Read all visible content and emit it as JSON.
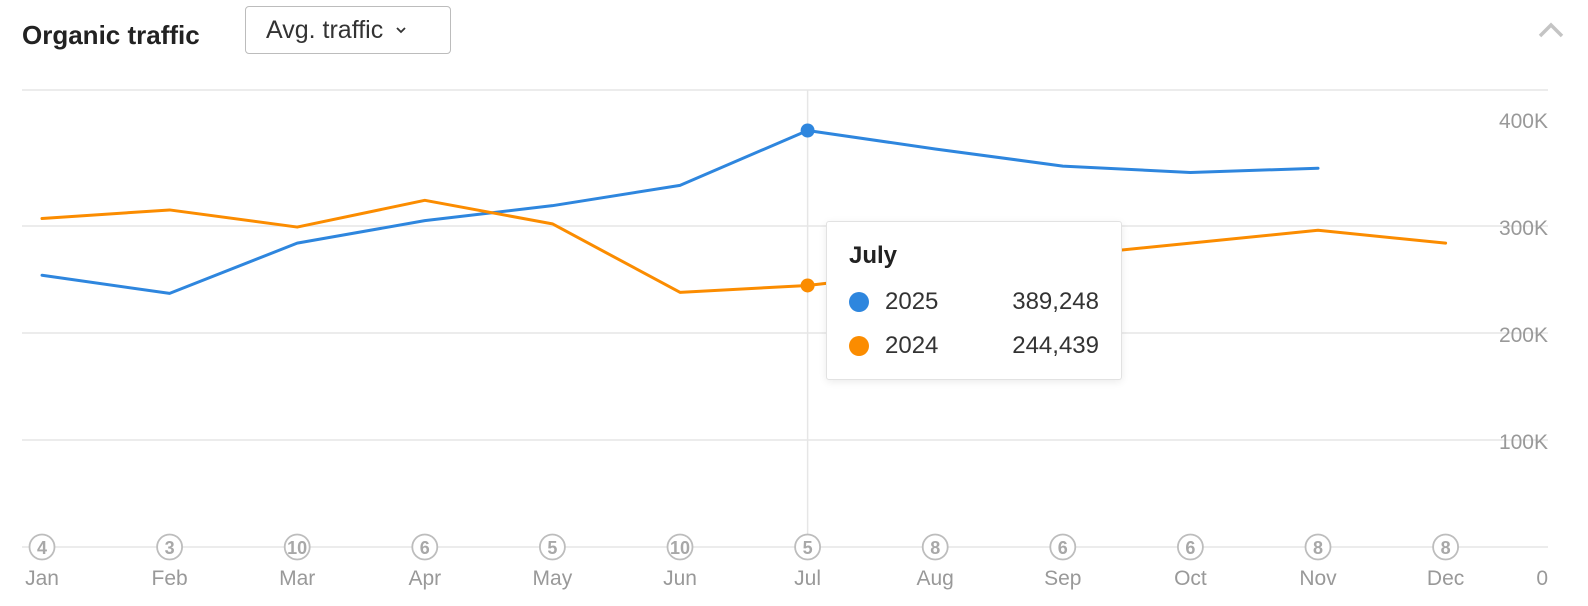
{
  "header": {
    "title": "Organic traffic",
    "dropdown_label": "Avg. traffic"
  },
  "icons": {
    "dropdown": "chevron-down-icon",
    "collapse": "chevron-up-icon"
  },
  "colors": {
    "series_2025": "#2e86de",
    "series_2024": "#fb8c00",
    "grid": "#e6e6e6",
    "axis_text": "#999999"
  },
  "tooltip": {
    "title": "July",
    "rows": [
      {
        "name": "2025",
        "value": "389,248"
      },
      {
        "name": "2024",
        "value": "244,439"
      }
    ]
  },
  "chart_data": {
    "type": "line",
    "categories": [
      "Jan",
      "Feb",
      "Mar",
      "Apr",
      "May",
      "Jun",
      "Jul",
      "Aug",
      "Sep",
      "Oct",
      "Nov",
      "Dec"
    ],
    "series": [
      {
        "name": "2025",
        "values": [
          254000,
          237000,
          284000,
          305000,
          319000,
          338000,
          389248,
          372000,
          356000,
          350000,
          354000,
          null
        ]
      },
      {
        "name": "2024",
        "values": [
          307000,
          315000,
          299000,
          324000,
          302000,
          238000,
          244439,
          null,
          272000,
          284000,
          296000,
          284000
        ]
      }
    ],
    "ylim": [
      0,
      400000
    ],
    "yticks": [
      {
        "value": 0,
        "label": "0"
      },
      {
        "value": 100000,
        "label": "100K"
      },
      {
        "value": 200000,
        "label": "200K"
      },
      {
        "value": 300000,
        "label": "300K"
      },
      {
        "value": 400000,
        "label": "400K"
      }
    ],
    "markers": [
      "4",
      "3",
      "10",
      "6",
      "5",
      "10",
      "5",
      "8",
      "6",
      "6",
      "8",
      "8"
    ],
    "highlight_index": 6,
    "grid": true,
    "legend": "tooltip"
  }
}
